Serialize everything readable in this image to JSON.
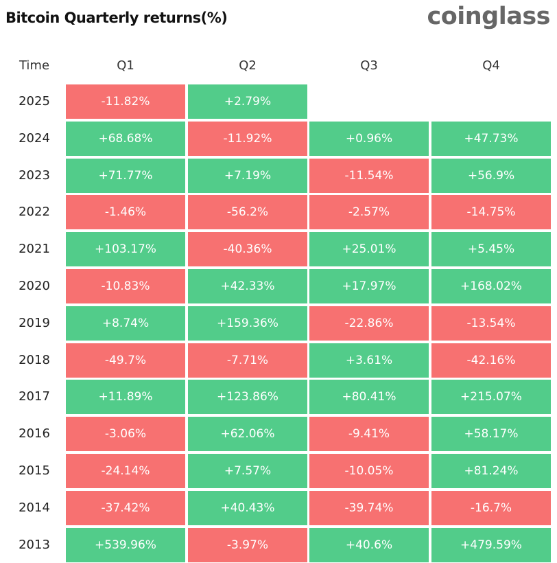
{
  "header": {
    "title": "Bitcoin Quarterly returns(%)",
    "brand": "coinglass"
  },
  "colors": {
    "positive": "#52cc8a",
    "negative": "#f77171"
  },
  "chart_data": {
    "type": "table",
    "title": "Bitcoin Quarterly returns(%)",
    "row_header": "Time",
    "columns": [
      "Q1",
      "Q2",
      "Q3",
      "Q4"
    ],
    "rows": [
      {
        "year": "2025",
        "values": [
          "-11.82%",
          "+2.79%",
          "",
          ""
        ]
      },
      {
        "year": "2024",
        "values": [
          "+68.68%",
          "-11.92%",
          "+0.96%",
          "+47.73%"
        ]
      },
      {
        "year": "2023",
        "values": [
          "+71.77%",
          "+7.19%",
          "-11.54%",
          "+56.9%"
        ]
      },
      {
        "year": "2022",
        "values": [
          "-1.46%",
          "-56.2%",
          "-2.57%",
          "-14.75%"
        ]
      },
      {
        "year": "2021",
        "values": [
          "+103.17%",
          "-40.36%",
          "+25.01%",
          "+5.45%"
        ]
      },
      {
        "year": "2020",
        "values": [
          "-10.83%",
          "+42.33%",
          "+17.97%",
          "+168.02%"
        ]
      },
      {
        "year": "2019",
        "values": [
          "+8.74%",
          "+159.36%",
          "-22.86%",
          "-13.54%"
        ]
      },
      {
        "year": "2018",
        "values": [
          "-49.7%",
          "-7.71%",
          "+3.61%",
          "-42.16%"
        ]
      },
      {
        "year": "2017",
        "values": [
          "+11.89%",
          "+123.86%",
          "+80.41%",
          "+215.07%"
        ]
      },
      {
        "year": "2016",
        "values": [
          "-3.06%",
          "+62.06%",
          "-9.41%",
          "+58.17%"
        ]
      },
      {
        "year": "2015",
        "values": [
          "-24.14%",
          "+7.57%",
          "-10.05%",
          "+81.24%"
        ]
      },
      {
        "year": "2014",
        "values": [
          "-37.42%",
          "+40.43%",
          "-39.74%",
          "-16.7%"
        ]
      },
      {
        "year": "2013",
        "values": [
          "+539.96%",
          "-3.97%",
          "+40.6%",
          "+479.59%"
        ]
      }
    ]
  }
}
